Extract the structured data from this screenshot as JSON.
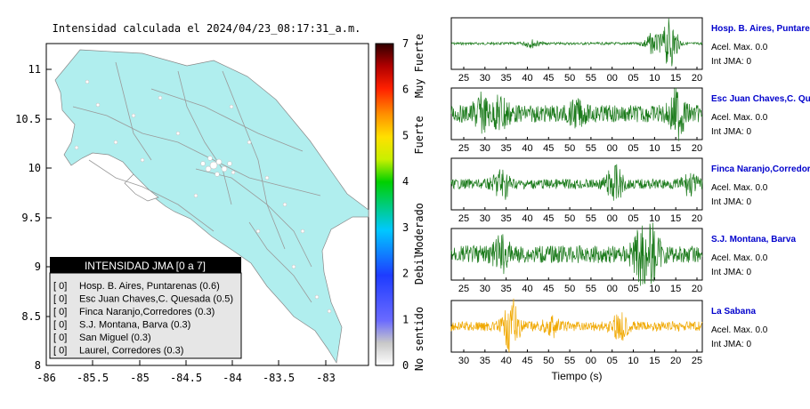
{
  "map": {
    "title": "Intensidad calculada el 2024/04/23_08:17:31_a.m.",
    "x_ticks": [
      "-86",
      "-85.5",
      "-85",
      "-84.5",
      "-84",
      "-83.5",
      "-83"
    ],
    "y_ticks": [
      "11",
      "10.5",
      "10",
      "9.5",
      "9",
      "8.5",
      "8"
    ]
  },
  "colorbar": {
    "ticks": [
      "7",
      "6",
      "5",
      "4",
      "3",
      "2",
      "1",
      "0"
    ],
    "labels": [
      "Muy Fuerte",
      "Fuerte",
      "Moderado",
      "Debil",
      "No sentido"
    ]
  },
  "legend": {
    "title": "INTENSIDAD JMA [0 a 7]",
    "items": [
      {
        "level": "[ 0]",
        "station": "Hosp. B. Aires, Puntarenas (0.6)"
      },
      {
        "level": "[ 0]",
        "station": "Esc Juan Chaves,C. Quesada (0.5)"
      },
      {
        "level": "[ 0]",
        "station": "Finca Naranjo,Corredores (0.3)"
      },
      {
        "level": "[ 0]",
        "station": "S.J. Montana, Barva (0.3)"
      },
      {
        "level": "[ 0]",
        "station": "San Miguel (0.3)"
      },
      {
        "level": "[ 0]",
        "station": "Laurel, Corredores (0.3)"
      }
    ]
  },
  "traces": [
    {
      "station": "Hosp. B. Aires, Puntarenas",
      "acel": "Acel. Max. 0.0",
      "int": "Int JMA: 0",
      "color": "#1a7a1a",
      "ticks": [
        "25",
        "30",
        "35",
        "40",
        "45",
        "50",
        "55",
        "00",
        "05",
        "10",
        "15",
        "20"
      ]
    },
    {
      "station": "Esc Juan Chaves,C. Quesada",
      "acel": "Acel. Max. 0.0",
      "int": "Int JMA: 0",
      "color": "#1a7a1a",
      "ticks": [
        "25",
        "30",
        "35",
        "40",
        "45",
        "50",
        "55",
        "00",
        "05",
        "10",
        "15",
        "20"
      ]
    },
    {
      "station": "Finca Naranjo,Corredores",
      "acel": "Acel. Max. 0.0",
      "int": "Int JMA: 0",
      "color": "#1a7a1a",
      "ticks": [
        "25",
        "30",
        "35",
        "40",
        "45",
        "50",
        "55",
        "00",
        "05",
        "10",
        "15",
        "20"
      ]
    },
    {
      "station": "S.J. Montana, Barva",
      "acel": "Acel. Max. 0.0",
      "int": "Int JMA: 0",
      "color": "#1a7a1a",
      "ticks": [
        "25",
        "30",
        "35",
        "40",
        "45",
        "50",
        "55",
        "00",
        "05",
        "10",
        "15",
        "20"
      ]
    },
    {
      "station": "La Sabana",
      "acel": "Acel. Max. 0.0",
      "int": "Int JMA: 0",
      "color": "#f0a800",
      "ticks": [
        "30",
        "35",
        "40",
        "45",
        "50",
        "55",
        "00",
        "05",
        "10",
        "15",
        "20",
        "25"
      ]
    }
  ],
  "time_axis_label": "Tiempo (s)",
  "colors": {
    "land": "#b0eeee",
    "accent_station": "#0000cc",
    "legend_header": "#000000"
  }
}
